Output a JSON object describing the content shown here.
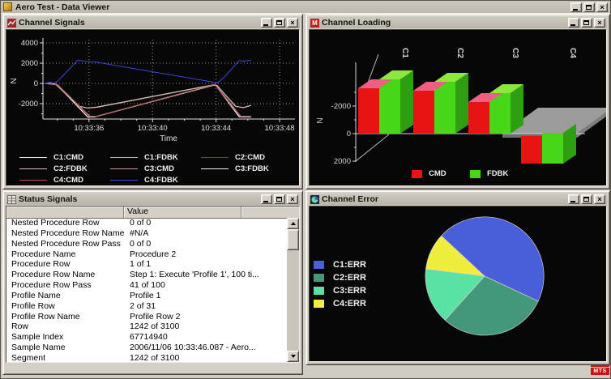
{
  "app": {
    "title": "Aero Test - Data Viewer",
    "logo": "MTS"
  },
  "icons": {
    "minimize": "_",
    "maximize": "",
    "close": "×"
  },
  "windows": {
    "channel_signals": {
      "title": "Channel Signals"
    },
    "channel_loading": {
      "title": "Channel Loading"
    },
    "status_signals": {
      "title": "Status Signals",
      "value_header": "Value",
      "rows": [
        {
          "name": "Nested Procedure Row",
          "value": "0 of 0"
        },
        {
          "name": "Nested Procedure Row Name",
          "value": "#N/A"
        },
        {
          "name": "Nested Procedure Row Pass",
          "value": "0 of 0"
        },
        {
          "name": "Procedure Name",
          "value": "Procedure 2"
        },
        {
          "name": "Procedure Row",
          "value": "1 of 1"
        },
        {
          "name": "Procedure Row Name",
          "value": "Step 1: Execute 'Profile 1', 100 ti..."
        },
        {
          "name": "Procedure Row Pass",
          "value": "41 of 100"
        },
        {
          "name": "Profile Name",
          "value": "Profile 1"
        },
        {
          "name": "Profile Row",
          "value": "2 of 31"
        },
        {
          "name": "Profile Row Name",
          "value": "Profile Row 2"
        },
        {
          "name": "Row",
          "value": "1242 of 3100"
        },
        {
          "name": "Sample Index",
          "value": "67714940"
        },
        {
          "name": "Sample Name",
          "value": "2006/11/06 10:33:46.087 - Aero..."
        },
        {
          "name": "Segment",
          "value": "1242 of 3100"
        }
      ]
    },
    "channel_error": {
      "title": "Channel Error"
    }
  },
  "chart_data": [
    {
      "type": "line",
      "title": "Channel Signals",
      "xlabel": "Time",
      "ylabel": "N",
      "x_tick_labels": [
        "10:33:36",
        "10:33:40",
        "10:33:44",
        "10:33:48"
      ],
      "x_tick_t": [
        36,
        40,
        44,
        48
      ],
      "y_ticks": [
        4000,
        2000,
        0,
        -2000
      ],
      "xlim": [
        33.1,
        49.0
      ],
      "ylim": [
        -3400,
        4000
      ],
      "grid": true,
      "legend_grid": [
        [
          "C1:CMD",
          "C1:FDBK",
          "C2:CMD"
        ],
        [
          "C2:FDBK",
          "C3:CMD",
          "C3:FDBK"
        ],
        [
          "C4:CMD",
          "C4:FDBK"
        ]
      ],
      "series": [
        {
          "name": "C1:CMD",
          "color": "#e8e8e8",
          "points": [
            [
              33.2,
              0
            ],
            [
              33.6,
              80
            ],
            [
              34.0,
              -150
            ],
            [
              35.9,
              -3300
            ],
            [
              36.3,
              -3320
            ],
            [
              43.9,
              -150
            ],
            [
              44.0,
              -250
            ],
            [
              45.45,
              -3300
            ],
            [
              46.2,
              -3320
            ]
          ]
        },
        {
          "name": "C1:FDBK",
          "color": "#b4b4b4",
          "points": [
            [
              33.2,
              0
            ],
            [
              33.9,
              -80
            ],
            [
              35.35,
              -2250
            ],
            [
              35.9,
              -2420
            ],
            [
              36.5,
              -2330
            ],
            [
              43.85,
              -120
            ],
            [
              44.05,
              -180
            ],
            [
              45.2,
              -2250
            ],
            [
              45.7,
              -2380
            ],
            [
              46.2,
              -2160
            ]
          ]
        },
        {
          "name": "C2:CMD",
          "color": "#8b3535",
          "points": [
            [
              33.2,
              0
            ],
            [
              34.0,
              -130
            ],
            [
              36.0,
              -3270
            ],
            [
              36.4,
              -3290
            ],
            [
              43.92,
              -120
            ],
            [
              45.5,
              -3270
            ],
            [
              46.2,
              -3290
            ]
          ]
        },
        {
          "name": "C2:FDBK",
          "color": "#e2bcbc",
          "points": [
            [
              33.2,
              0
            ],
            [
              33.9,
              -90
            ],
            [
              35.4,
              -2270
            ],
            [
              35.95,
              -2440
            ],
            [
              36.55,
              -2350
            ],
            [
              43.87,
              -140
            ],
            [
              44.06,
              -200
            ],
            [
              45.25,
              -2270
            ],
            [
              45.72,
              -2400
            ],
            [
              46.2,
              -2180
            ]
          ]
        },
        {
          "name": "C3:CMD",
          "color": "#d49c9c",
          "points": [
            [
              33.2,
              0
            ],
            [
              34.05,
              -170
            ],
            [
              36.05,
              -3240
            ],
            [
              36.45,
              -3260
            ],
            [
              43.94,
              -90
            ],
            [
              45.55,
              -3240
            ],
            [
              46.2,
              -3260
            ]
          ]
        },
        {
          "name": "C3:FDBK",
          "color": "#f4f4f4",
          "points": [
            [
              33.2,
              0
            ],
            [
              33.65,
              60
            ],
            [
              34.02,
              -160
            ],
            [
              35.92,
              -3310
            ],
            [
              36.32,
              -3330
            ],
            [
              43.9,
              -160
            ],
            [
              44.02,
              -260
            ],
            [
              45.48,
              -3310
            ],
            [
              46.2,
              -3330
            ]
          ]
        },
        {
          "name": "C4:CMD",
          "color": "#b05454",
          "points": [
            [
              33.2,
              0
            ],
            [
              34.02,
              -150
            ],
            [
              36.02,
              -3255
            ],
            [
              36.42,
              -3275
            ],
            [
              43.93,
              -105
            ],
            [
              45.52,
              -3255
            ],
            [
              46.2,
              -3275
            ]
          ]
        },
        {
          "name": "C4:FDBK",
          "color": "#3a46d4",
          "points": [
            [
              33.2,
              0
            ],
            [
              33.5,
              90
            ],
            [
              33.75,
              10
            ],
            [
              34.0,
              160
            ],
            [
              35.3,
              2300
            ],
            [
              35.75,
              2190
            ],
            [
              36.4,
              2120
            ],
            [
              43.7,
              160
            ],
            [
              43.95,
              10
            ],
            [
              44.15,
              120
            ],
            [
              44.5,
              600
            ],
            [
              45.45,
              2260
            ],
            [
              45.75,
              2190
            ],
            [
              46.2,
              2300
            ]
          ]
        }
      ]
    },
    {
      "type": "bar3d",
      "title": "Channel Loading",
      "ylabel": "N",
      "categories": [
        "C1",
        "C2",
        "C3",
        "C4"
      ],
      "y_ticks": [
        -2000,
        0,
        2000
      ],
      "y_inverted": true,
      "series": [
        {
          "name": "CMD",
          "color": "#e81414",
          "top_color": "#ef6080",
          "values": [
            -3300,
            -3100,
            -2300,
            2000
          ]
        },
        {
          "name": "FDBK",
          "color": "#46d818",
          "top_color": "#8ce83c",
          "side_color": "#2f9e12",
          "values": [
            -3300,
            -3100,
            -2300,
            2000
          ]
        }
      ],
      "plane_color": "#9c9c9c"
    },
    {
      "type": "pie",
      "title": "Channel Error",
      "start_angle_deg": 313,
      "slices": [
        {
          "label": "C1:ERR",
          "color": "#4a5ed8",
          "value": 45.0
        },
        {
          "label": "C2:ERR",
          "color": "#43987c",
          "value": 29.7
        },
        {
          "label": "C3:ERR",
          "color": "#5ae2a4",
          "value": 15.3
        },
        {
          "label": "C4:ERR",
          "color": "#f0ee3c",
          "value": 10.0
        }
      ]
    }
  ]
}
